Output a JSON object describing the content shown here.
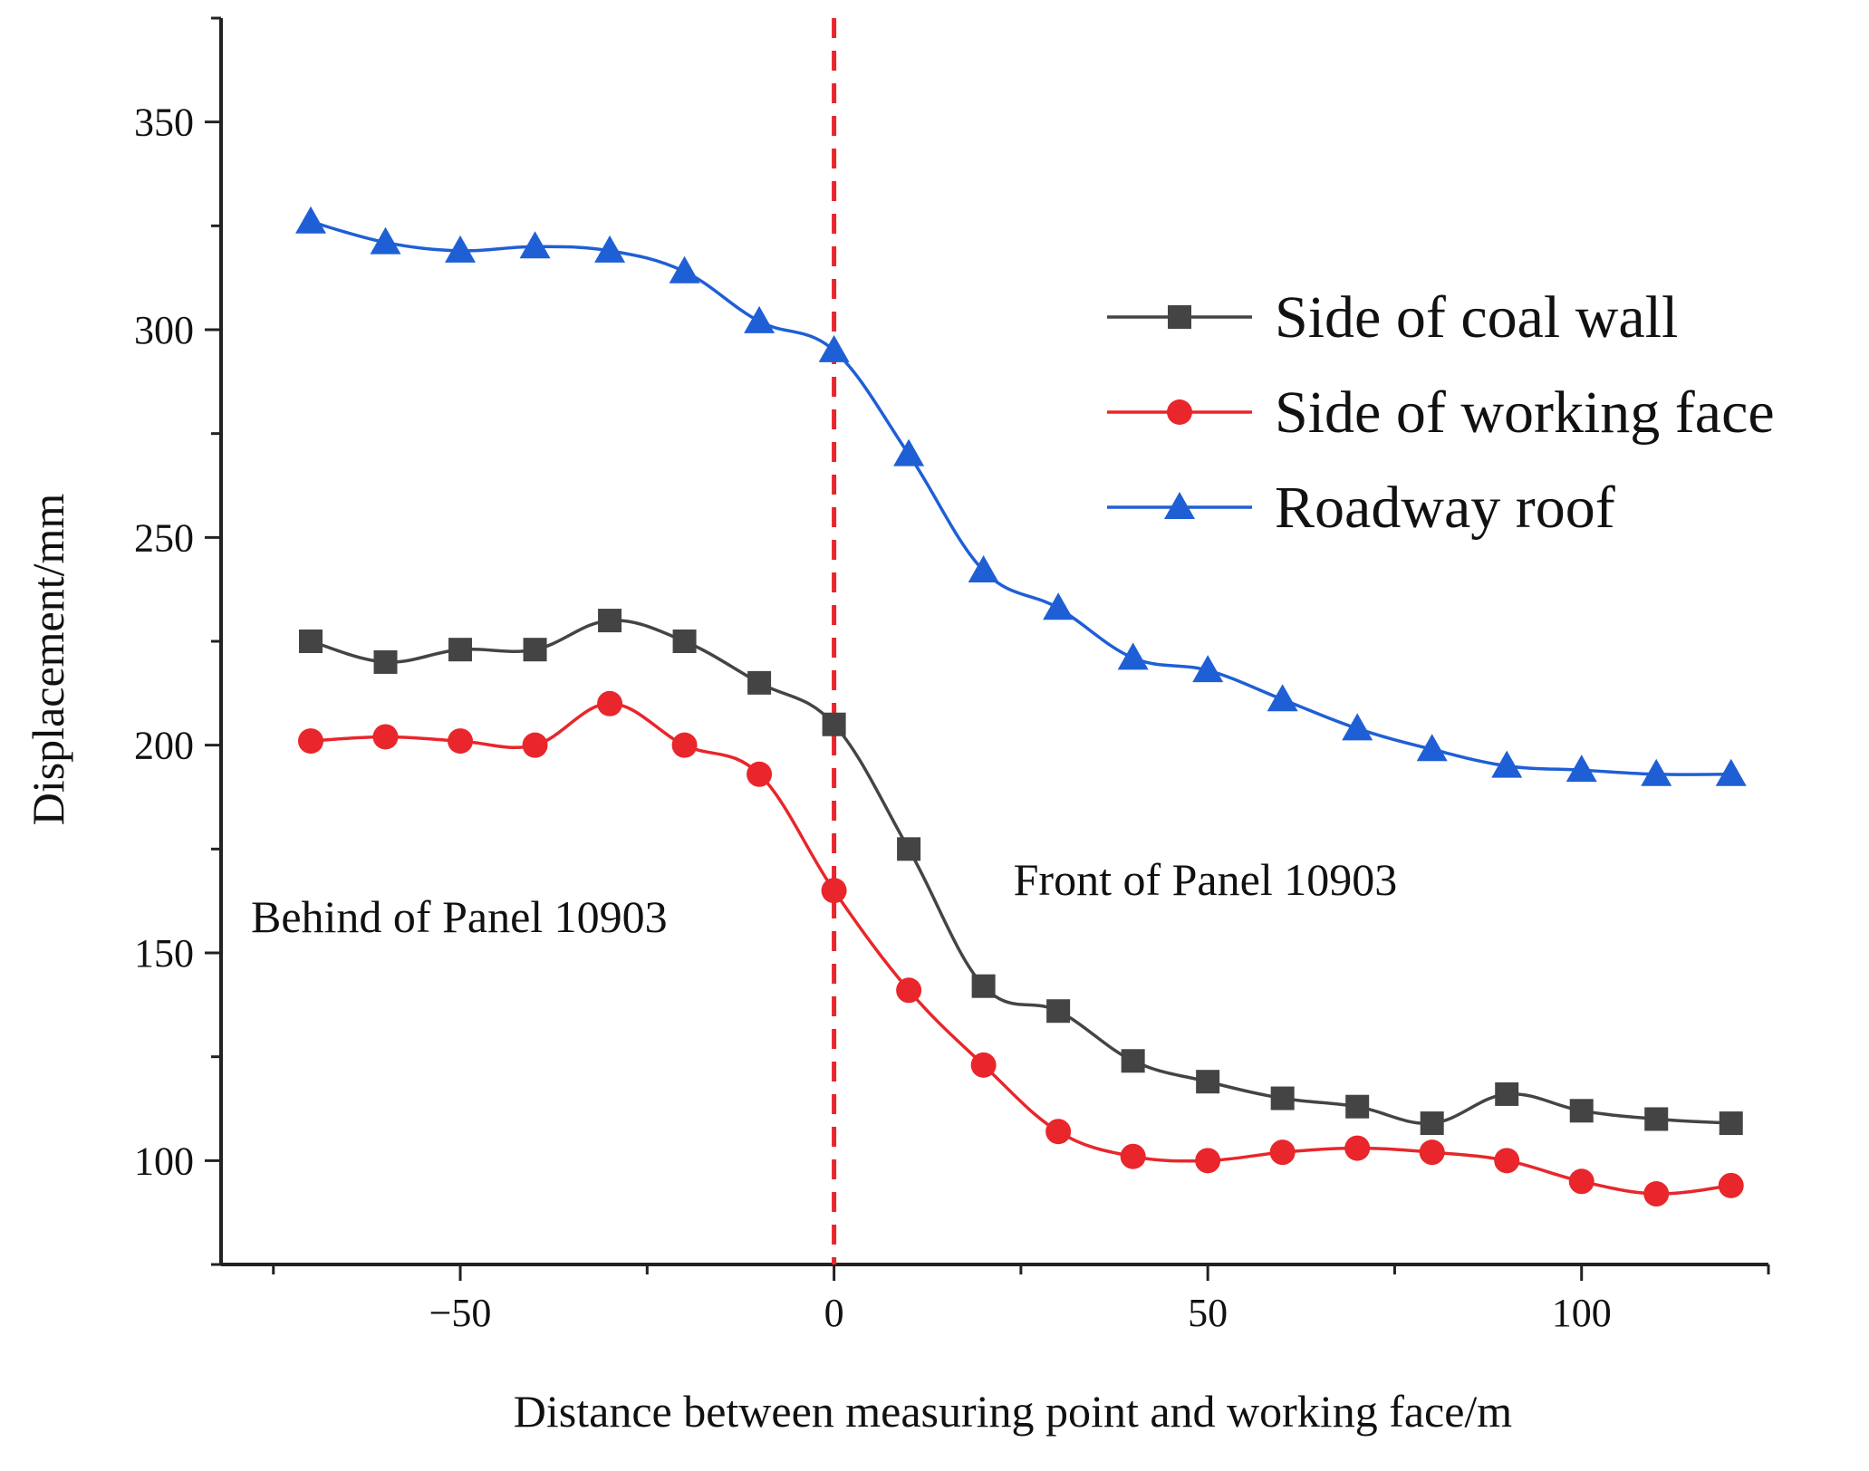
{
  "chart_data": {
    "type": "line",
    "title": "",
    "xlabel": "Distance between measuring point and working face/m",
    "ylabel": "Displacement/mm",
    "xlim": [
      -82,
      125
    ],
    "ylim": [
      75,
      375
    ],
    "xticks": [
      -50,
      0,
      50,
      100
    ],
    "yticks": [
      100,
      150,
      200,
      250,
      300,
      350
    ],
    "grid": false,
    "legend_position": "top-right",
    "reference_line": {
      "x": 0,
      "style": "dashed",
      "color": "#e8262b"
    },
    "annotations": [
      {
        "text": "Front of Panel 10903",
        "x": 24,
        "y": 164
      },
      {
        "text": "Behind of Panel 10903",
        "x": -78,
        "y": 155
      }
    ],
    "x": [
      -70,
      -60,
      -50,
      -40,
      -30,
      -20,
      -10,
      0,
      10,
      20,
      30,
      40,
      50,
      60,
      70,
      80,
      90,
      100,
      110,
      120
    ],
    "series": [
      {
        "name": "Side of coal wall",
        "color": "#444444",
        "marker": "square",
        "values": [
          225,
          220,
          223,
          223,
          230,
          225,
          215,
          205,
          175,
          142,
          136,
          124,
          119,
          115,
          113,
          109,
          116,
          112,
          110,
          109
        ]
      },
      {
        "name": "Side of working face",
        "color": "#e8262b",
        "marker": "circle",
        "values": [
          201,
          202,
          201,
          200,
          210,
          200,
          193,
          165,
          141,
          123,
          107,
          101,
          100,
          102,
          103,
          102,
          100,
          95,
          92,
          94
        ]
      },
      {
        "name": "Roadway roof",
        "color": "#1f5fd6",
        "marker": "triangle",
        "values": [
          326,
          321,
          319,
          320,
          319,
          314,
          302,
          295,
          270,
          242,
          233,
          221,
          218,
          211,
          204,
          199,
          195,
          194,
          193,
          193
        ]
      }
    ]
  }
}
